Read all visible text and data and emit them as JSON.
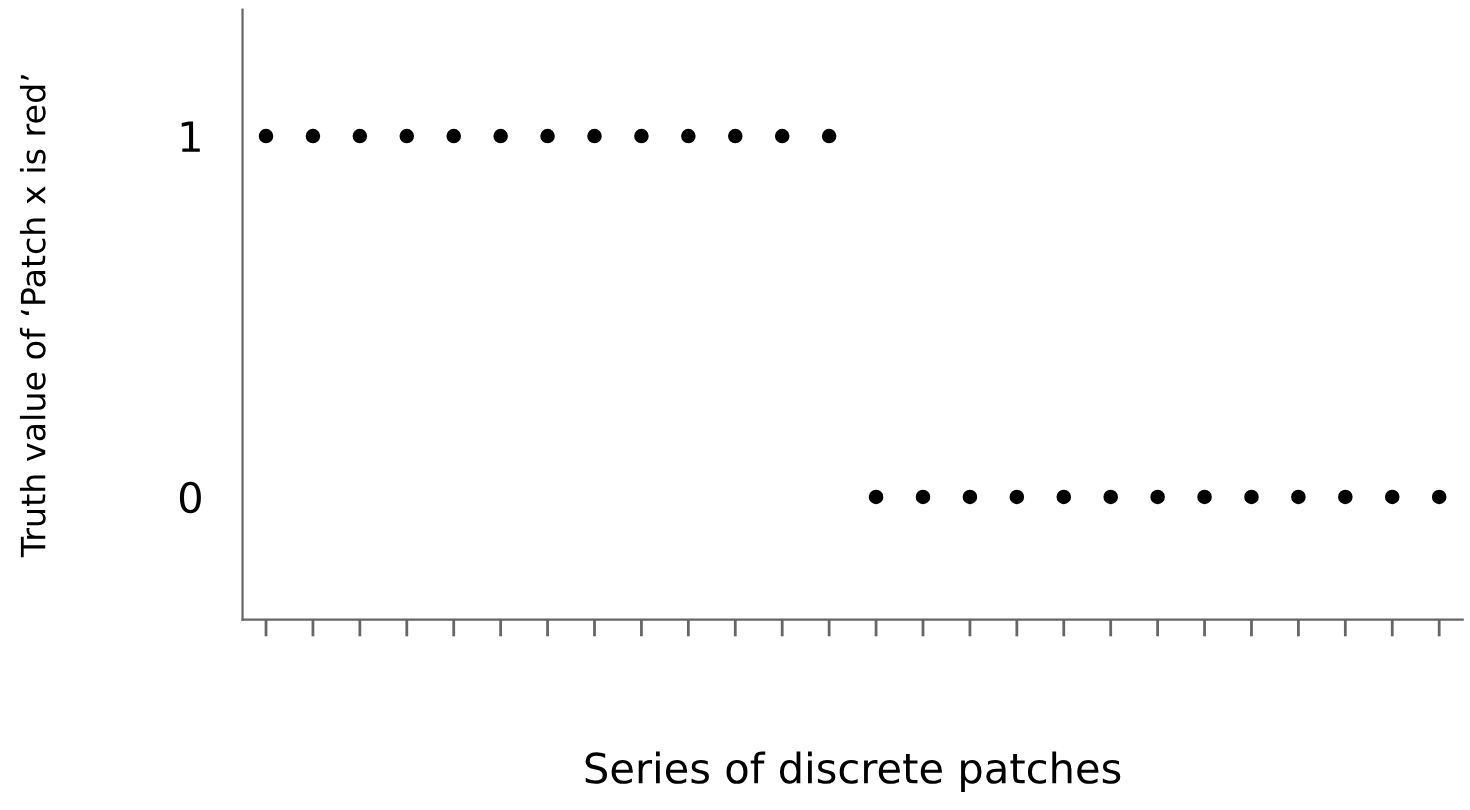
{
  "chart_data": {
    "type": "scatter",
    "xlabel": "Series of discrete patches",
    "ylabel": "Truth value of ‘Patch x is red’",
    "categories": [
      null,
      null,
      null,
      null,
      null,
      null,
      null,
      null,
      null,
      null,
      null,
      null,
      null,
      null,
      null,
      null,
      null,
      null,
      null,
      null,
      null,
      null,
      null,
      null,
      null,
      null
    ],
    "series": [
      {
        "color": "#000000",
        "values": [
          1,
          1,
          1,
          1,
          1,
          1,
          1,
          1,
          1,
          1,
          1,
          1,
          1,
          0,
          0,
          0,
          0,
          0,
          0,
          0,
          0,
          0,
          0,
          0,
          0,
          0
        ]
      }
    ],
    "ylim": [
      -0.34,
      1.35
    ],
    "yticks": [
      0,
      1
    ],
    "marker": "circle",
    "grid": false,
    "tick_labels": "y",
    "legend": false
  }
}
